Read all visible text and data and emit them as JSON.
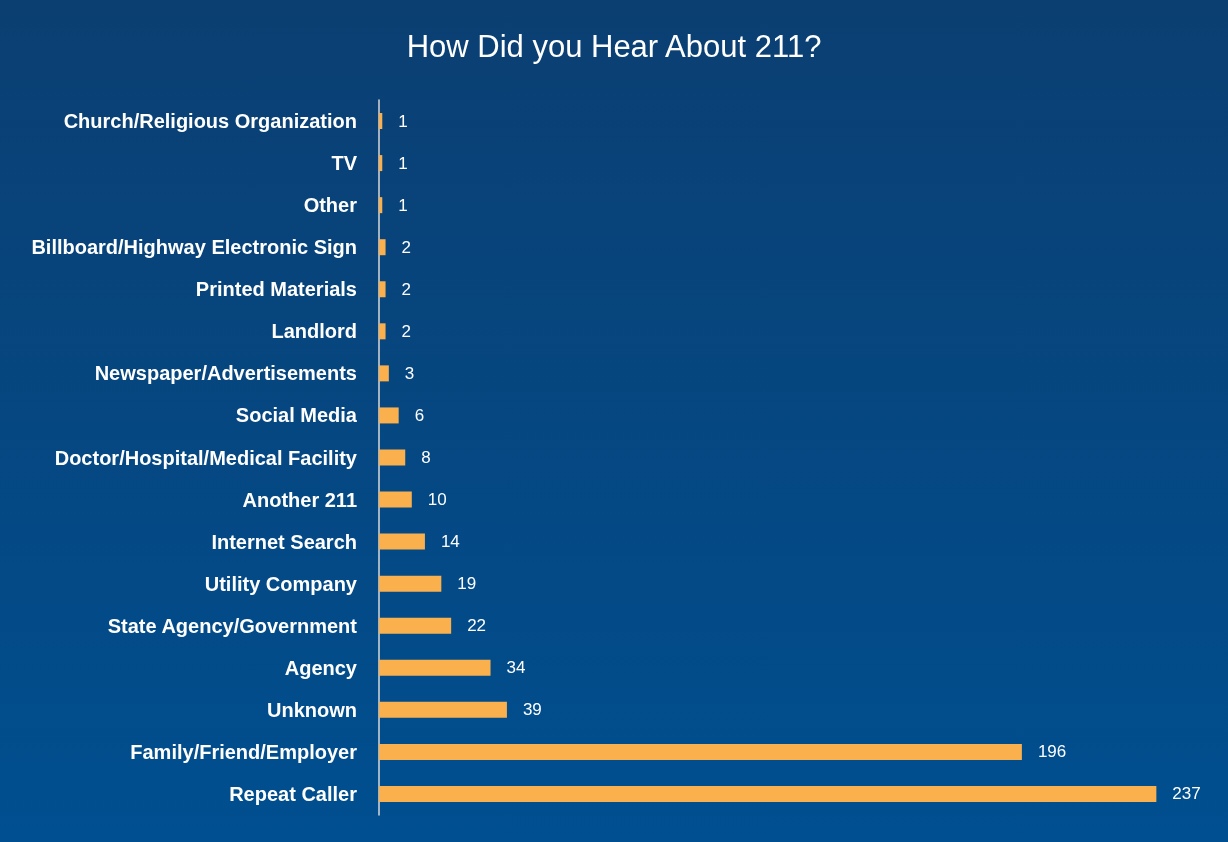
{
  "chart_data": {
    "type": "bar",
    "title": "How Did you Hear About 211?",
    "orientation": "horizontal",
    "categories": [
      "Church/Religious Organization",
      "TV",
      "Other",
      "Billboard/Highway Electronic Sign",
      "Printed Materials",
      "Landlord",
      "Newspaper/Advertisements",
      "Social Media",
      "Doctor/Hospital/Medical Facility",
      "Another 211",
      "Internet Search",
      "Utility Company",
      "State Agency/Government",
      "Agency",
      "Unknown",
      "Family/Friend/Employer",
      "Repeat Caller"
    ],
    "values": [
      1,
      1,
      1,
      2,
      2,
      2,
      3,
      6,
      8,
      10,
      14,
      19,
      22,
      34,
      39,
      196,
      237
    ],
    "color": "#fbb04e",
    "data_labels": true
  }
}
